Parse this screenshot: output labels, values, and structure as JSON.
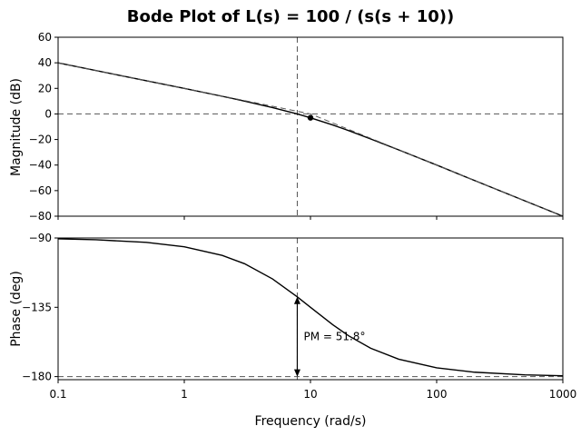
{
  "chart_data": {
    "type": "line",
    "title": "Bode Plot of L(s) = 100 / (s(s + 10))",
    "xlabel": "Frequency (rad/s)",
    "x_scale": "log",
    "xlim": [
      0.1,
      1000
    ],
    "x_ticks": [
      0.1,
      1,
      10,
      100,
      1000
    ],
    "x_tick_labels": [
      "0.1",
      "1",
      "10",
      "100",
      "1000"
    ],
    "panels": [
      {
        "name": "magnitude",
        "ylabel": "Magnitude (dB)",
        "ylim": [
          -80,
          60
        ],
        "y_ticks": [
          60,
          40,
          20,
          0,
          -20,
          -40,
          -60,
          -80
        ],
        "y_tick_labels": [
          "60",
          "40",
          "20",
          "0",
          "−20",
          "−40",
          "−60",
          "−80"
        ],
        "series": [
          {
            "style": "solid",
            "x": [
              0.1,
              0.3,
              1,
              2,
              3,
              5,
              7.86,
              10,
              15,
              20,
              30,
              50,
              100,
              200,
              500,
              1000
            ],
            "y": [
              40.0,
              30.4,
              19.96,
              13.81,
              10.07,
              4.99,
              0.0,
              -3.01,
              -8.6,
              -13.0,
              -19.6,
              -28.1,
              -40.0,
              -52.1,
              -68.0,
              -80.0
            ]
          },
          {
            "style": "dashed",
            "x": [
              0.1,
              10,
              1000
            ],
            "y": [
              40,
              0,
              -80
            ]
          }
        ],
        "reference_lines": [
          {
            "axis": "y",
            "value": 0
          }
        ],
        "markers": [
          {
            "x": 10,
            "y": -3
          }
        ]
      },
      {
        "name": "phase",
        "ylabel": "Phase (deg)",
        "ylim": [
          -182,
          -90
        ],
        "y_ticks": [
          -90,
          -135,
          -180
        ],
        "y_tick_labels": [
          "−90",
          "−135",
          "−180"
        ],
        "series": [
          {
            "style": "solid",
            "x": [
              0.1,
              0.2,
              0.5,
              1,
              2,
              3,
              5,
              7.86,
              10,
              15,
              20,
              30,
              50,
              100,
              200,
              500,
              1000
            ],
            "y": [
              -90.57,
              -91.15,
              -92.86,
              -95.71,
              -101.31,
              -106.7,
              -116.57,
              -128.2,
              -135.0,
              -146.31,
              -153.43,
              -161.57,
              -168.69,
              -174.29,
              -177.14,
              -178.85,
              -179.43
            ]
          }
        ],
        "reference_lines": [
          {
            "axis": "y",
            "value": -180
          }
        ]
      }
    ],
    "crossover_frequency": 7.86,
    "phase_margin_annotation": "PM = 51.8°"
  }
}
